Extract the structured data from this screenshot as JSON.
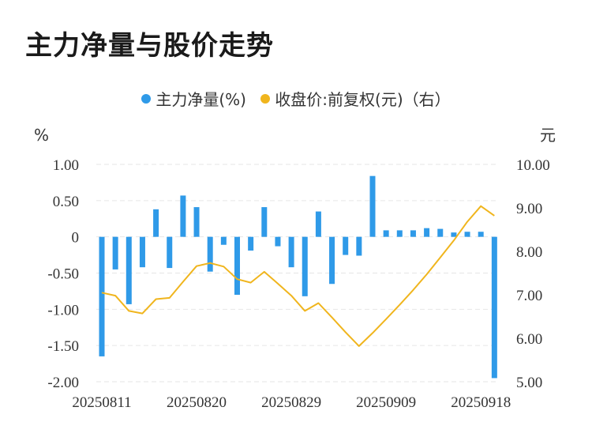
{
  "title": "主力净量与股价走势",
  "legend": {
    "series1": "主力净量(%)",
    "series2": "收盘价:前复权(元)（右）"
  },
  "colors": {
    "bar": "#2f9ae8",
    "line": "#f0b51d",
    "grid": "#e6e6e6"
  },
  "chart_data": {
    "type": "bar",
    "left_unit": "%",
    "right_unit": "元",
    "y_left_ticks": [
      "1.00",
      "0.50",
      "0",
      "-0.50",
      "-1.00",
      "-1.50",
      "-2.00"
    ],
    "y_right_ticks": [
      "10.00",
      "9.00",
      "8.00",
      "7.00",
      "6.00",
      "5.00"
    ],
    "ylim_left": [
      -2.0,
      1.0
    ],
    "ylim_right": [
      5.0,
      10.0
    ],
    "x_tick_labels": [
      "20250811",
      "20250820",
      "20250829",
      "20250909",
      "20250918"
    ],
    "x_tick_index": [
      0,
      7,
      14,
      21,
      28
    ],
    "grid": true,
    "series": [
      {
        "name": "主力净量(%)",
        "axis": "left",
        "values": [
          -1.65,
          -0.45,
          -0.93,
          -0.42,
          0.38,
          -0.43,
          0.57,
          0.41,
          -0.48,
          -0.11,
          -0.8,
          -0.19,
          0.41,
          -0.13,
          -0.42,
          -0.82,
          0.35,
          -0.65,
          -0.25,
          -0.26,
          0.84,
          0.09,
          0.09,
          0.09,
          0.12,
          0.11,
          0.06,
          0.07,
          0.07,
          -1.95
        ]
      },
      {
        "name": "收盘价:前复权(元)（右）",
        "axis": "right",
        "values": [
          7.05,
          6.98,
          6.63,
          6.57,
          6.9,
          6.93,
          7.3,
          7.66,
          7.73,
          7.65,
          7.36,
          7.28,
          7.53,
          7.26,
          6.98,
          6.63,
          6.81,
          6.48,
          6.14,
          5.82,
          6.12,
          6.44,
          6.77,
          7.11,
          7.47,
          7.86,
          8.25,
          8.68,
          9.04,
          8.82
        ]
      }
    ]
  }
}
